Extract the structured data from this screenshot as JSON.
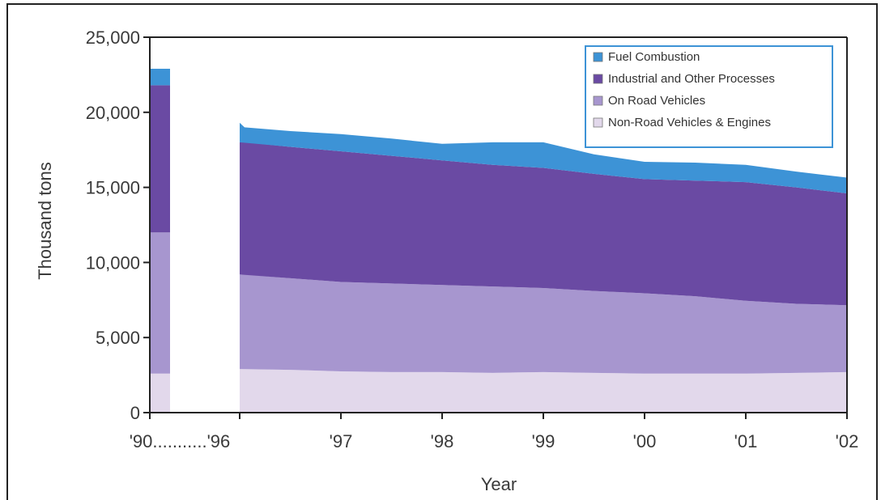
{
  "chart_data": {
    "type": "area",
    "stacked": true,
    "xlabel": "Year",
    "ylabel": "Thousand tons",
    "ylim": [
      0,
      25000
    ],
    "yticks": [
      0,
      5000,
      10000,
      15000,
      20000,
      25000
    ],
    "ytick_labels": [
      "0",
      "5,000",
      "10,000",
      "15,000",
      "20,000",
      "25,000"
    ],
    "xtick_labels": [
      "'90",
      "'96",
      "'97",
      "'98",
      "'99",
      "'00",
      "'01",
      "'02"
    ],
    "break_label": "'90...........'96",
    "legend_position": "top-right",
    "colors": {
      "Fuel Combustion": "#3d93d6",
      "Industrial and Other Processes": "#6a4aa3",
      "On Road Vehicles": "#a796cf",
      "Non-Road Vehicles & Engines": "#e2d8eb"
    },
    "legend_entries": [
      "Fuel Combustion",
      "Industrial and Other Processes",
      "On Road Vehicles",
      "Non-Road Vehicles & Engines"
    ],
    "baseline_1990": {
      "year": "'90",
      "values": {
        "Non-Road Vehicles & Engines": 2600,
        "On Road Vehicles": 9400,
        "Industrial and Other Processes": 9800,
        "Fuel Combustion": 1100
      }
    },
    "x": [
      1996,
      1996.5,
      1997,
      1997.5,
      1998,
      1998.5,
      1999,
      1999.5,
      2000,
      2000.5,
      2001,
      2001.5,
      2002
    ],
    "series": [
      {
        "name": "Non-Road Vehicles & Engines",
        "values": [
          2900,
          2850,
          2750,
          2700,
          2700,
          2650,
          2700,
          2650,
          2600,
          2600,
          2600,
          2650,
          2700
        ]
      },
      {
        "name": "On Road Vehicles",
        "values": [
          6300,
          6100,
          5950,
          5900,
          5800,
          5750,
          5600,
          5450,
          5350,
          5150,
          4850,
          4600,
          4450
        ]
      },
      {
        "name": "Industrial and Other Processes",
        "values": [
          8800,
          8750,
          8700,
          8500,
          8300,
          8100,
          8000,
          7800,
          7600,
          7700,
          7900,
          7750,
          7450
        ]
      },
      {
        "name": "Fuel Combustion",
        "values": [
          1000,
          1050,
          1150,
          1150,
          1100,
          1500,
          1700,
          1300,
          1150,
          1200,
          1150,
          1050,
          1050
        ]
      }
    ],
    "x_spike_1996": 19300
  }
}
